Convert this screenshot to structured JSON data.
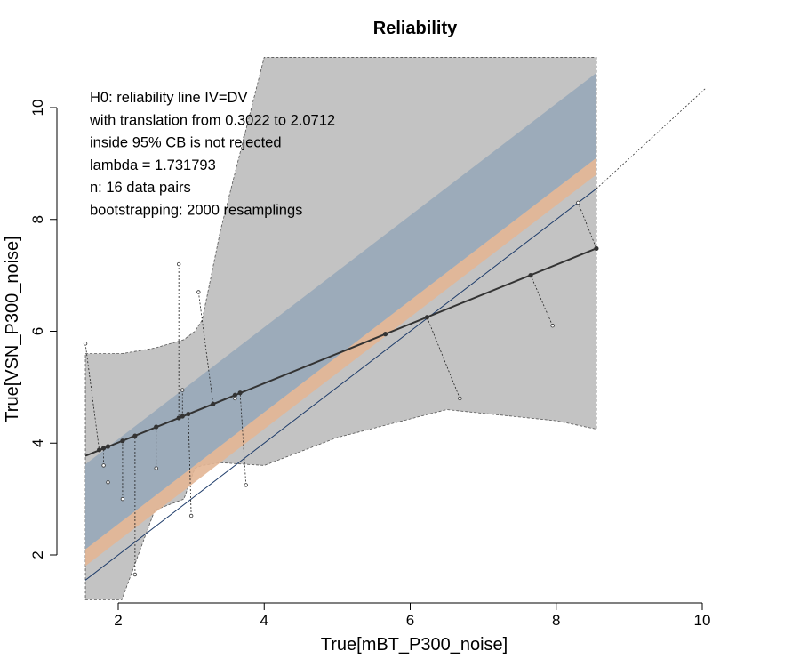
{
  "chart_data": {
    "type": "scatter",
    "title": "Reliability",
    "xlabel": "True[mBT_P300_noise]",
    "ylabel": "True[VSN_P300_noise]",
    "xlim": [
      1.55,
      10
    ],
    "ylim": [
      1.2,
      10.9
    ],
    "x_ticks": [
      2,
      4,
      6,
      8,
      10
    ],
    "y_ticks": [
      2,
      4,
      6,
      8,
      10
    ],
    "grid": false,
    "annotations": [
      "H0: reliability line IV=DV",
      "with translation from 0.3022 to 2.0712",
      "inside 95% CB is not rejected",
      "lambda = 1.731793",
      "n: 16 data pairs",
      "bootstrapping: 2000 resamplings"
    ],
    "colors": {
      "confidence_band": "#c3c3c3",
      "translation_band": "#9aaab9",
      "translation_band_edge": "#e3b695",
      "regression_line": "#333333",
      "reliability_line": "#1f3d6b"
    },
    "regression_line": {
      "intercept": 2.95,
      "slope": 0.53
    },
    "reliability_line": {
      "intercept": 0,
      "slope": 1
    },
    "translation_band": {
      "from": 0.3022,
      "to": 2.0712
    },
    "fitted_points": {
      "x": [
        1.74,
        1.8,
        1.86,
        2.06,
        2.23,
        2.52,
        2.83,
        2.88,
        2.96,
        3.3,
        3.6,
        3.67,
        5.66,
        6.23,
        7.65,
        8.55
      ],
      "y": [
        3.88,
        3.91,
        3.94,
        4.04,
        4.13,
        4.29,
        4.45,
        4.48,
        4.52,
        4.7,
        4.86,
        4.9,
        5.95,
        6.25,
        7.0,
        7.48
      ]
    },
    "observed_points": {
      "x": [
        1.55,
        1.8,
        1.86,
        2.06,
        2.23,
        2.52,
        2.83,
        2.88,
        3.0,
        3.1,
        3.6,
        3.75,
        5.66,
        6.68,
        7.95,
        8.3
      ],
      "y": [
        5.78,
        3.6,
        3.3,
        3.0,
        1.65,
        3.55,
        7.2,
        4.95,
        2.7,
        6.7,
        4.8,
        3.25,
        5.95,
        4.8,
        6.1,
        8.3
      ]
    },
    "confidence_band": {
      "x": [
        1.55,
        2.05,
        2.5,
        2.9,
        3.05,
        3.15,
        3.4,
        4.0,
        5.0,
        6.5,
        8.0,
        8.55
      ],
      "lower": [
        1.2,
        1.2,
        2.8,
        3.0,
        3.55,
        3.6,
        3.65,
        3.6,
        4.1,
        4.6,
        4.4,
        4.25
      ],
      "upper": [
        5.6,
        5.6,
        5.7,
        5.85,
        6.0,
        6.2,
        7.8,
        10.9,
        10.9,
        10.9,
        10.9,
        10.9
      ]
    },
    "extended_range_line": {
      "x": [
        8.55,
        10.3
      ],
      "y": [
        8.55,
        10.65
      ]
    }
  }
}
